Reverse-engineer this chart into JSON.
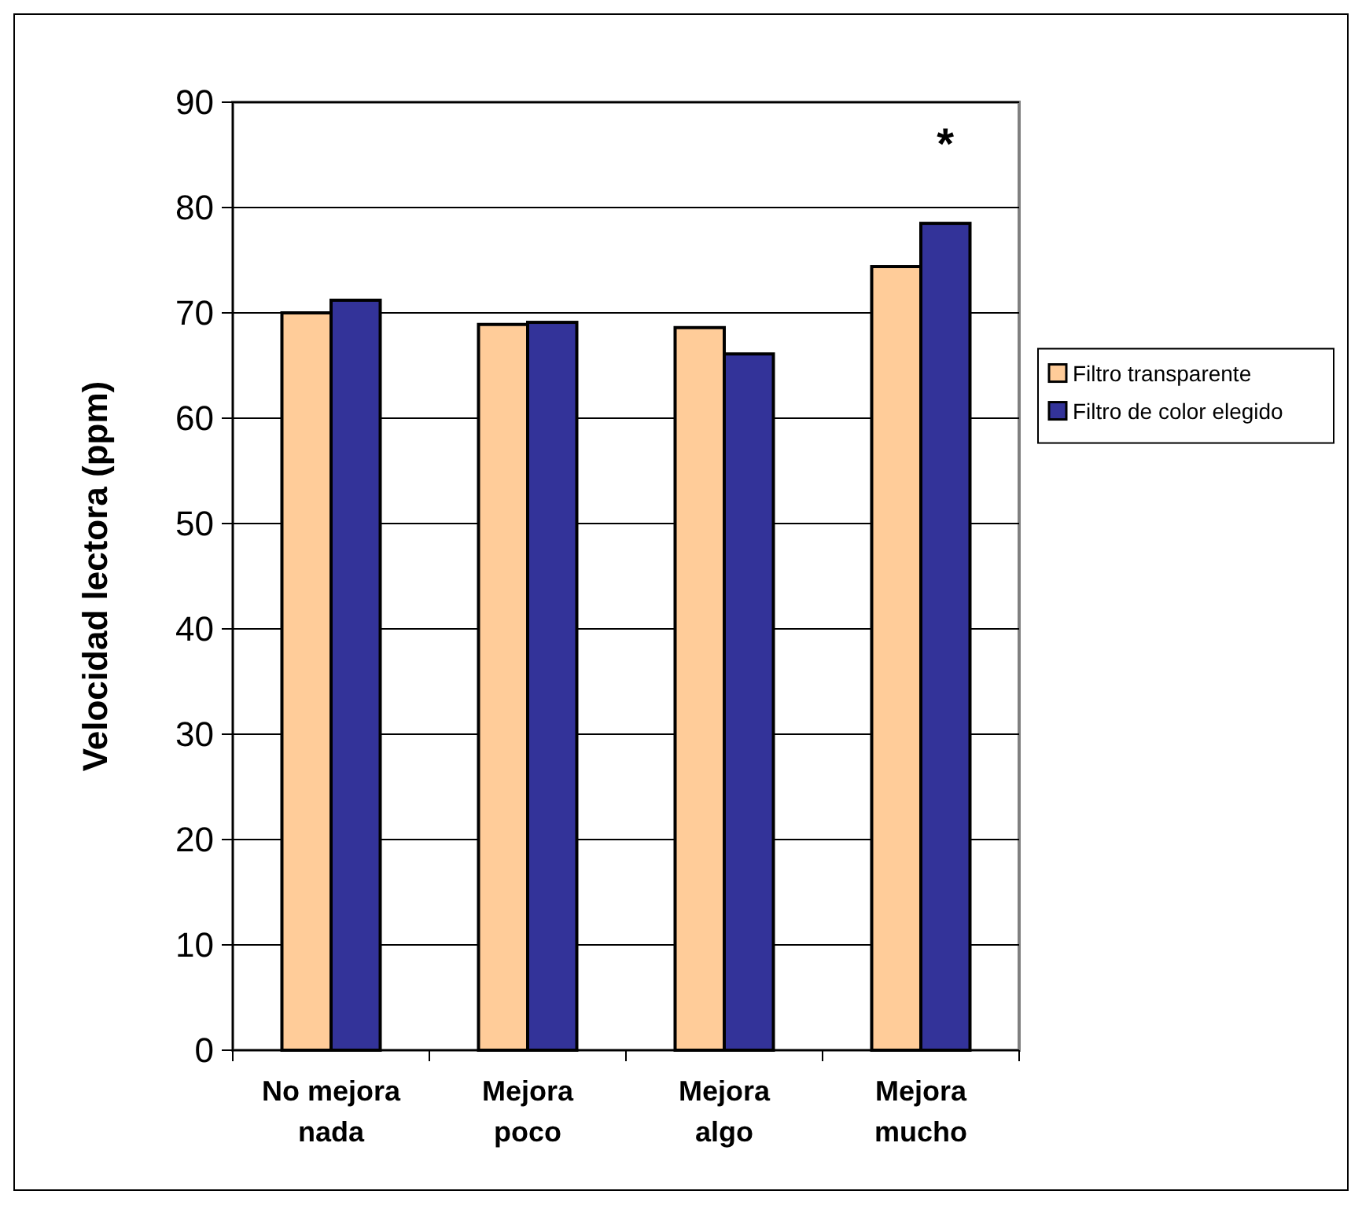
{
  "chart_data": {
    "type": "bar",
    "ylabel": "Velocidad lectora (ppm)",
    "categories": [
      "No mejora nada",
      "Mejora poco",
      "Mejora algo",
      "Mejora mucho"
    ],
    "series": [
      {
        "name": "Filtro transparente",
        "color": "#ffcc99",
        "values": [
          70.0,
          68.9,
          68.6,
          74.4
        ]
      },
      {
        "name": "Filtro de color elegido",
        "color": "#333399",
        "values": [
          71.2,
          69.1,
          66.1,
          78.5
        ]
      }
    ],
    "ylim": [
      0,
      90
    ],
    "yticks": [
      0,
      10,
      20,
      30,
      40,
      50,
      60,
      70,
      80,
      90
    ],
    "grid": "y",
    "legend": "right",
    "annotations": [
      "*"
    ]
  }
}
